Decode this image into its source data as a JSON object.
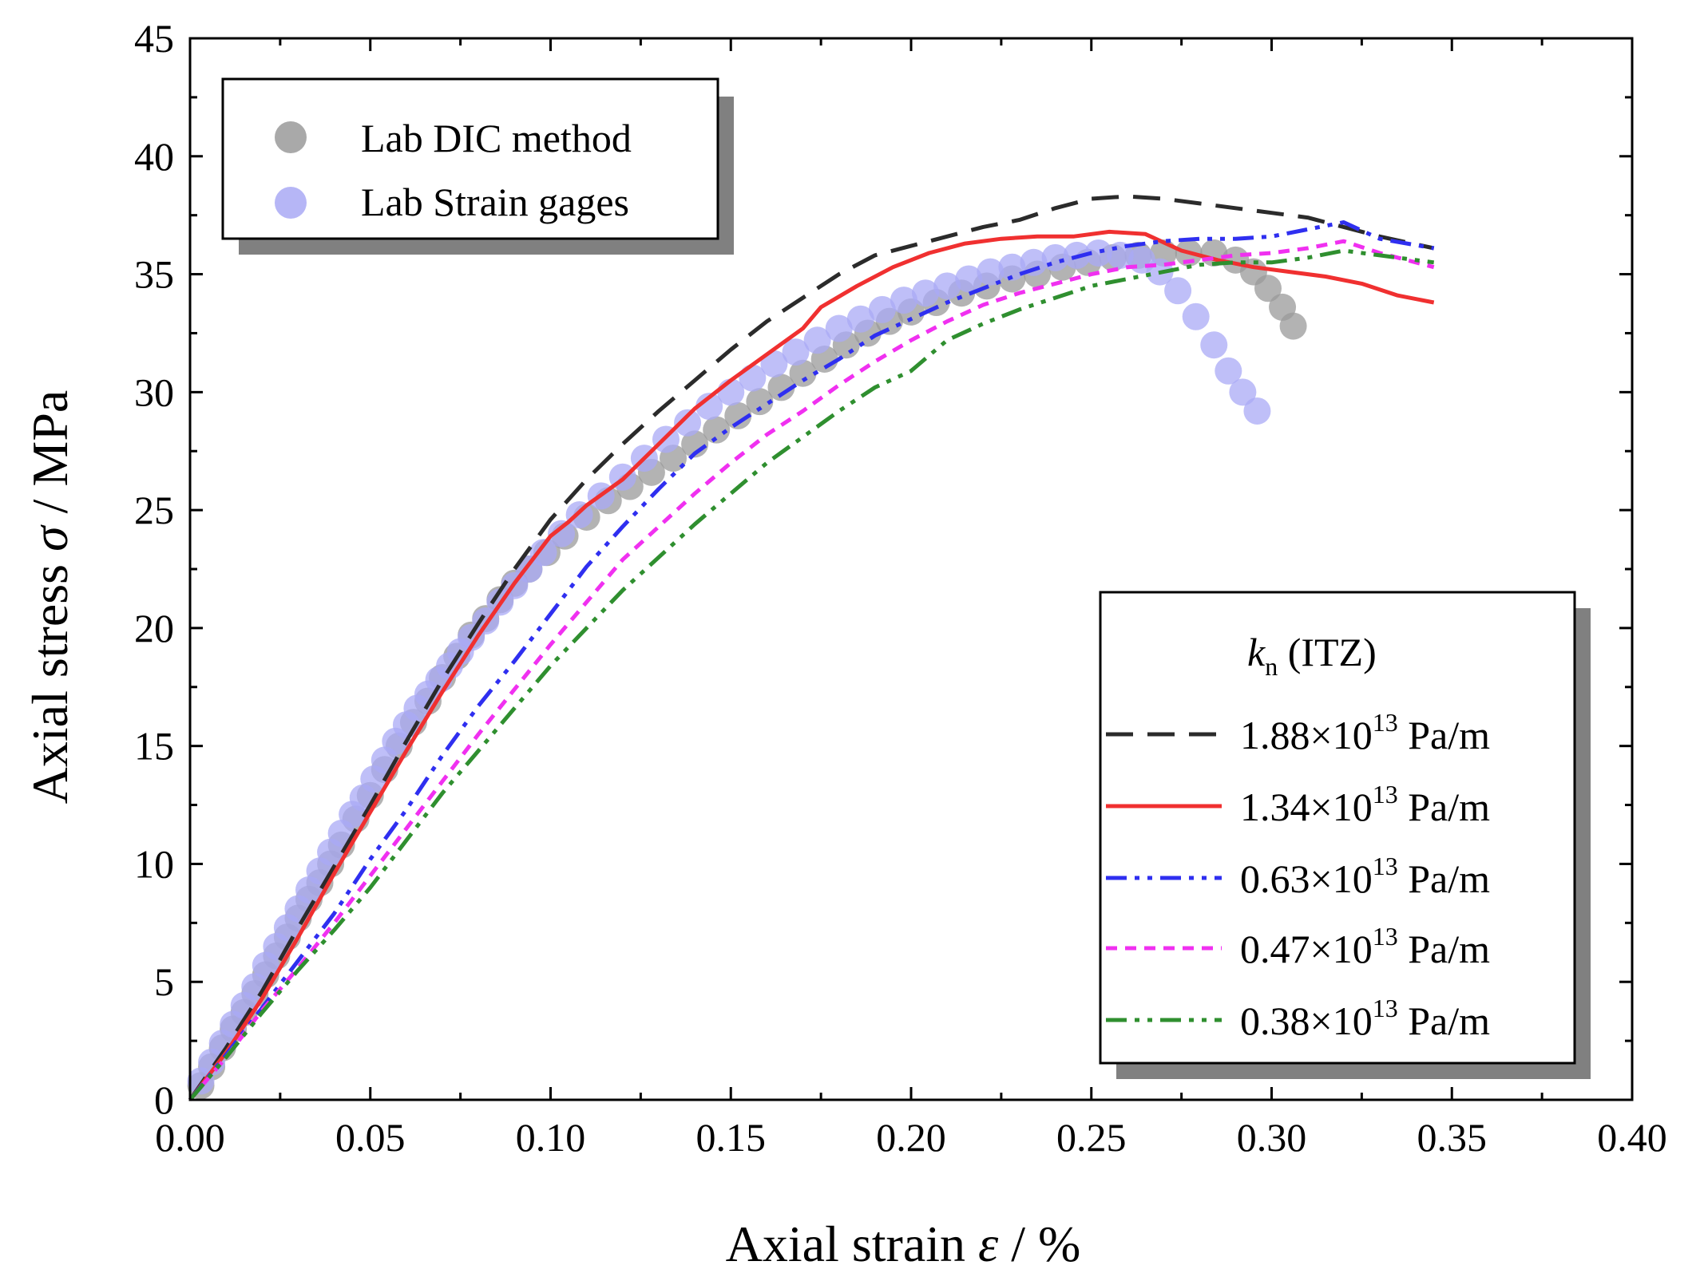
{
  "chart_data": {
    "type": "line",
    "xlabel_main": "Axial strain ",
    "xlabel_symbol": "ε",
    "xlabel_unit": " / %",
    "ylabel_main": "Axial stress ",
    "ylabel_symbol": "σ",
    "ylabel_unit": " / MPa",
    "xlim": [
      0,
      0.4
    ],
    "ylim": [
      0,
      45
    ],
    "xticks": [
      "0.00",
      "0.05",
      "0.10",
      "0.15",
      "0.20",
      "0.25",
      "0.30",
      "0.35",
      "0.40"
    ],
    "yticks": [
      "0",
      "5",
      "10",
      "15",
      "20",
      "25",
      "30",
      "35",
      "40",
      "45"
    ],
    "legend_lab": {
      "entries": [
        {
          "label": "Lab DIC method",
          "color": "#9a9a9a"
        },
        {
          "label": "Lab Strain gages",
          "color": "#a9a9f5"
        }
      ]
    },
    "legend_sim": {
      "title_symbol": "k",
      "title_sub": "n",
      "title_rest": " (ITZ)",
      "entries": [
        {
          "mantissa": "1.88×10",
          "exp": "13",
          "unit": " Pa/m",
          "color": "#2b2b2b"
        },
        {
          "mantissa": "1.34×10",
          "exp": "13",
          "unit": " Pa/m",
          "color": "#f03030"
        },
        {
          "mantissa": "0.63×10",
          "exp": "13",
          "unit": " Pa/m",
          "color": "#2f2ff0"
        },
        {
          "mantissa": "0.47×10",
          "exp": "13",
          "unit": " Pa/m",
          "color": "#f030f0"
        },
        {
          "mantissa": "0.38×10",
          "exp": "13",
          "unit": " Pa/m",
          "color": "#2f8f2f"
        }
      ]
    },
    "scatter_series": [
      {
        "name": "Lab DIC method",
        "color": "#9a9a9a",
        "x": [
          0.003,
          0.006,
          0.009,
          0.012,
          0.015,
          0.018,
          0.021,
          0.024,
          0.027,
          0.03,
          0.033,
          0.036,
          0.039,
          0.042,
          0.046,
          0.05,
          0.054,
          0.058,
          0.062,
          0.066,
          0.07,
          0.074,
          0.078,
          0.082,
          0.086,
          0.09,
          0.094,
          0.099,
          0.104,
          0.11,
          0.116,
          0.122,
          0.128,
          0.134,
          0.14,
          0.146,
          0.152,
          0.158,
          0.164,
          0.17,
          0.176,
          0.182,
          0.188,
          0.194,
          0.2,
          0.207,
          0.214,
          0.221,
          0.228,
          0.235,
          0.242,
          0.249,
          0.256,
          0.263,
          0.27,
          0.277,
          0.284,
          0.29,
          0.295,
          0.299,
          0.303,
          0.306
        ],
        "y": [
          0.6,
          1.4,
          2.2,
          3.0,
          3.7,
          4.5,
          5.3,
          6.1,
          6.9,
          7.7,
          8.5,
          9.2,
          10.0,
          10.8,
          11.9,
          12.9,
          14.0,
          15.0,
          16.0,
          16.9,
          17.9,
          18.8,
          19.7,
          20.4,
          21.2,
          21.9,
          22.5,
          23.2,
          23.9,
          24.7,
          25.4,
          26.0,
          26.6,
          27.2,
          27.8,
          28.4,
          29.0,
          29.6,
          30.2,
          30.8,
          31.4,
          32.0,
          32.5,
          33.0,
          33.4,
          33.8,
          34.2,
          34.5,
          34.8,
          35.0,
          35.3,
          35.5,
          35.7,
          35.8,
          35.9,
          35.9,
          35.9,
          35.6,
          35.1,
          34.4,
          33.6,
          32.8
        ]
      },
      {
        "name": "Lab Strain gages",
        "color": "#a9a9f5",
        "x": [
          0.003,
          0.006,
          0.009,
          0.012,
          0.015,
          0.018,
          0.021,
          0.024,
          0.027,
          0.03,
          0.033,
          0.036,
          0.039,
          0.042,
          0.045,
          0.048,
          0.051,
          0.054,
          0.057,
          0.06,
          0.063,
          0.066,
          0.069,
          0.072,
          0.075,
          0.078,
          0.082,
          0.086,
          0.09,
          0.094,
          0.098,
          0.103,
          0.108,
          0.114,
          0.12,
          0.126,
          0.132,
          0.138,
          0.144,
          0.15,
          0.156,
          0.162,
          0.168,
          0.174,
          0.18,
          0.186,
          0.192,
          0.198,
          0.204,
          0.21,
          0.216,
          0.222,
          0.228,
          0.234,
          0.24,
          0.246,
          0.252,
          0.258,
          0.264,
          0.269,
          0.274,
          0.279,
          0.284,
          0.288,
          0.292,
          0.296
        ],
        "y": [
          0.8,
          1.6,
          2.4,
          3.2,
          4.0,
          4.8,
          5.7,
          6.5,
          7.3,
          8.1,
          8.9,
          9.7,
          10.5,
          11.3,
          12.1,
          12.8,
          13.6,
          14.4,
          15.2,
          15.9,
          16.6,
          17.2,
          17.8,
          18.4,
          19.0,
          19.6,
          20.3,
          21.1,
          21.8,
          22.5,
          23.2,
          24.0,
          24.8,
          25.6,
          26.4,
          27.2,
          28.0,
          28.7,
          29.4,
          30.0,
          30.6,
          31.2,
          31.7,
          32.2,
          32.7,
          33.1,
          33.5,
          33.9,
          34.2,
          34.5,
          34.8,
          35.1,
          35.3,
          35.5,
          35.7,
          35.8,
          35.9,
          35.8,
          35.6,
          35.1,
          34.3,
          33.2,
          32.0,
          30.9,
          30.0,
          29.2
        ]
      }
    ],
    "line_series": [
      {
        "name": "1.88×10^13 Pa/m",
        "color": "#2b2b2b",
        "style": "dash",
        "x": [
          0,
          0.01,
          0.02,
          0.03,
          0.04,
          0.05,
          0.06,
          0.07,
          0.08,
          0.09,
          0.1,
          0.11,
          0.12,
          0.13,
          0.14,
          0.15,
          0.16,
          0.17,
          0.18,
          0.19,
          0.2,
          0.21,
          0.22,
          0.23,
          0.24,
          0.25,
          0.26,
          0.27,
          0.28,
          0.29,
          0.3,
          0.31,
          0.32,
          0.33,
          0.345
        ],
        "y": [
          0,
          2.2,
          4.6,
          7.3,
          9.9,
          12.5,
          15.2,
          17.8,
          20.2,
          22.5,
          24.6,
          26.3,
          27.8,
          29.2,
          30.5,
          31.8,
          33.0,
          34.0,
          35.0,
          35.8,
          36.2,
          36.6,
          37.0,
          37.3,
          37.8,
          38.2,
          38.3,
          38.2,
          38.0,
          37.8,
          37.6,
          37.4,
          37.0,
          36.6,
          36.1
        ]
      },
      {
        "name": "1.34×10^13 Pa/m",
        "color": "#f03030",
        "style": "solid",
        "x": [
          0,
          0.01,
          0.02,
          0.03,
          0.04,
          0.05,
          0.06,
          0.07,
          0.08,
          0.09,
          0.1,
          0.105,
          0.11,
          0.12,
          0.13,
          0.14,
          0.15,
          0.16,
          0.17,
          0.175,
          0.185,
          0.195,
          0.205,
          0.215,
          0.225,
          0.235,
          0.245,
          0.255,
          0.265,
          0.275,
          0.285,
          0.295,
          0.305,
          0.315,
          0.325,
          0.335,
          0.345
        ],
        "y": [
          0,
          2.0,
          4.3,
          6.9,
          9.6,
          12.2,
          14.8,
          17.3,
          19.7,
          21.9,
          23.9,
          24.5,
          25.2,
          26.3,
          27.8,
          29.3,
          30.5,
          31.6,
          32.7,
          33.6,
          34.5,
          35.3,
          35.9,
          36.3,
          36.5,
          36.6,
          36.6,
          36.8,
          36.7,
          36.0,
          35.6,
          35.3,
          35.1,
          34.9,
          34.6,
          34.1,
          33.8
        ]
      },
      {
        "name": "0.63×10^13 Pa/m",
        "color": "#2f2ff0",
        "style": "dashdotdot",
        "x": [
          0,
          0.01,
          0.02,
          0.03,
          0.04,
          0.05,
          0.06,
          0.07,
          0.08,
          0.09,
          0.1,
          0.11,
          0.12,
          0.13,
          0.14,
          0.15,
          0.16,
          0.17,
          0.18,
          0.19,
          0.2,
          0.21,
          0.22,
          0.23,
          0.24,
          0.25,
          0.26,
          0.27,
          0.28,
          0.29,
          0.3,
          0.31,
          0.32,
          0.33,
          0.345
        ],
        "y": [
          0,
          1.9,
          3.9,
          5.9,
          7.9,
          10.2,
          12.3,
          14.6,
          16.7,
          18.6,
          20.6,
          22.6,
          24.3,
          25.9,
          27.4,
          28.5,
          29.5,
          30.5,
          31.4,
          32.4,
          33.1,
          33.8,
          34.4,
          35.0,
          35.5,
          35.9,
          36.2,
          36.4,
          36.5,
          36.5,
          36.6,
          36.9,
          37.2,
          36.5,
          36.1
        ]
      },
      {
        "name": "0.47×10^13 Pa/m",
        "color": "#f030f0",
        "style": "shortdash",
        "x": [
          0,
          0.01,
          0.02,
          0.03,
          0.04,
          0.05,
          0.06,
          0.07,
          0.08,
          0.09,
          0.1,
          0.11,
          0.12,
          0.13,
          0.14,
          0.15,
          0.16,
          0.17,
          0.18,
          0.19,
          0.2,
          0.21,
          0.22,
          0.23,
          0.24,
          0.25,
          0.26,
          0.27,
          0.28,
          0.29,
          0.3,
          0.31,
          0.32,
          0.33,
          0.345
        ],
        "y": [
          0,
          1.8,
          3.8,
          5.6,
          7.5,
          9.5,
          11.5,
          13.5,
          15.5,
          17.4,
          19.3,
          21.1,
          22.9,
          24.3,
          25.7,
          27.0,
          28.2,
          29.2,
          30.3,
          31.3,
          32.2,
          33.0,
          33.7,
          34.2,
          34.6,
          35.0,
          35.3,
          35.4,
          35.6,
          35.8,
          35.9,
          36.1,
          36.4,
          35.9,
          35.3
        ]
      },
      {
        "name": "0.38×10^13 Pa/m",
        "color": "#2f8f2f",
        "style": "dashdotdot",
        "x": [
          0,
          0.01,
          0.02,
          0.03,
          0.04,
          0.05,
          0.06,
          0.07,
          0.08,
          0.09,
          0.1,
          0.11,
          0.12,
          0.13,
          0.14,
          0.15,
          0.16,
          0.17,
          0.18,
          0.19,
          0.2,
          0.21,
          0.22,
          0.23,
          0.24,
          0.25,
          0.26,
          0.27,
          0.28,
          0.29,
          0.3,
          0.31,
          0.32,
          0.33,
          0.345
        ],
        "y": [
          0,
          1.8,
          3.7,
          5.5,
          7.2,
          9.0,
          11.0,
          13.0,
          14.8,
          16.6,
          18.4,
          20.0,
          21.6,
          23.0,
          24.4,
          25.7,
          27.0,
          28.1,
          29.2,
          30.2,
          30.9,
          32.2,
          32.9,
          33.5,
          34.0,
          34.5,
          34.8,
          35.1,
          35.4,
          35.5,
          35.5,
          35.7,
          36.0,
          35.8,
          35.5
        ]
      }
    ]
  }
}
